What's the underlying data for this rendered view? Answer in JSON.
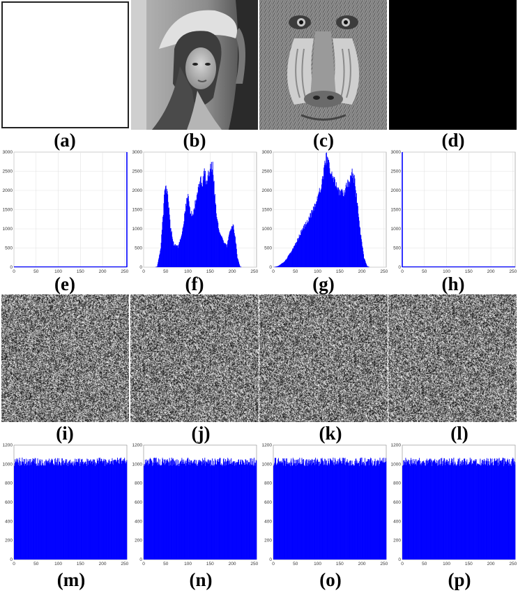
{
  "figure": {
    "labels": [
      "(a)",
      "(b)",
      "(c)",
      "(d)",
      "(e)",
      "(f)",
      "(g)",
      "(h)",
      "(i)",
      "(j)",
      "(k)",
      "(l)",
      "(m)",
      "(n)",
      "(o)",
      "(p)"
    ],
    "images": {
      "a": {
        "content": "white-image"
      },
      "b": {
        "content": "lena-grayscale-photo"
      },
      "c": {
        "content": "baboon-grayscale-photo"
      },
      "d": {
        "content": "black-image"
      },
      "i": {
        "content": "noise-like-encrypted-image"
      },
      "j": {
        "content": "noise-like-encrypted-image"
      },
      "k": {
        "content": "noise-like-encrypted-image"
      },
      "l": {
        "content": "noise-like-encrypted-image"
      }
    }
  },
  "chart_data": [
    {
      "id": "e",
      "type": "bar",
      "series_color": "#0000ff",
      "xlim": [
        0,
        255
      ],
      "ylim": [
        0,
        3000
      ],
      "xticks": [
        "0",
        "50",
        "100",
        "150",
        "200",
        "250"
      ],
      "yticks": [
        "0",
        "500",
        "1000",
        "1500",
        "2000",
        "2500",
        "3000"
      ],
      "grid": true,
      "bars": [
        {
          "x": 255,
          "y": 3000
        }
      ],
      "note_values": "single spike at 255 exceeding axis"
    },
    {
      "id": "f",
      "type": "bar",
      "series_color": "#0000ff",
      "xlim": [
        0,
        255
      ],
      "ylim": [
        0,
        3000
      ],
      "xticks": [
        "0",
        "50",
        "100",
        "150",
        "200",
        "250"
      ],
      "yticks": [
        "0",
        "500",
        "1000",
        "1500",
        "2000",
        "2500",
        "3000"
      ],
      "grid": true,
      "envelope": [
        [
          25,
          0
        ],
        [
          30,
          20
        ],
        [
          38,
          500
        ],
        [
          43,
          1300
        ],
        [
          47,
          2000
        ],
        [
          50,
          2100
        ],
        [
          54,
          1900
        ],
        [
          60,
          1100
        ],
        [
          68,
          600
        ],
        [
          78,
          550
        ],
        [
          88,
          1000
        ],
        [
          97,
          1800
        ],
        [
          101,
          1950
        ],
        [
          106,
          1400
        ],
        [
          112,
          1450
        ],
        [
          120,
          1900
        ],
        [
          128,
          2400
        ],
        [
          132,
          2200
        ],
        [
          137,
          2550
        ],
        [
          141,
          2300
        ],
        [
          147,
          2450
        ],
        [
          152,
          2650
        ],
        [
          156,
          2750
        ],
        [
          160,
          2000
        ],
        [
          166,
          1250
        ],
        [
          172,
          900
        ],
        [
          180,
          700
        ],
        [
          188,
          550
        ],
        [
          196,
          1000
        ],
        [
          202,
          1150
        ],
        [
          207,
          800
        ],
        [
          212,
          250
        ],
        [
          218,
          20
        ],
        [
          222,
          0
        ]
      ]
    },
    {
      "id": "g",
      "type": "bar",
      "series_color": "#0000ff",
      "xlim": [
        0,
        255
      ],
      "ylim": [
        0,
        3000
      ],
      "xticks": [
        "0",
        "50",
        "100",
        "150",
        "200",
        "250"
      ],
      "yticks": [
        "0",
        "500",
        "1000",
        "1500",
        "2000",
        "2500",
        "3000"
      ],
      "grid": true,
      "envelope": [
        [
          0,
          0
        ],
        [
          10,
          30
        ],
        [
          25,
          150
        ],
        [
          45,
          500
        ],
        [
          65,
          1000
        ],
        [
          85,
          1400
        ],
        [
          100,
          1800
        ],
        [
          110,
          2300
        ],
        [
          115,
          2600
        ],
        [
          120,
          2950
        ],
        [
          125,
          2800
        ],
        [
          130,
          2500
        ],
        [
          140,
          2250
        ],
        [
          150,
          1950
        ],
        [
          160,
          2000
        ],
        [
          170,
          2250
        ],
        [
          178,
          2500
        ],
        [
          183,
          2350
        ],
        [
          190,
          1700
        ],
        [
          197,
          900
        ],
        [
          205,
          250
        ],
        [
          212,
          30
        ],
        [
          218,
          0
        ]
      ]
    },
    {
      "id": "h",
      "type": "bar",
      "series_color": "#0000ff",
      "xlim": [
        0,
        255
      ],
      "ylim": [
        0,
        3000
      ],
      "xticks": [
        "0",
        "50",
        "100",
        "150",
        "200",
        "250"
      ],
      "yticks": [
        "0",
        "500",
        "1000",
        "1500",
        "2000",
        "2500",
        "3000"
      ],
      "grid": true,
      "bars": [
        {
          "x": 0,
          "y": 3000
        }
      ],
      "note_values": "single spike at 0 exceeding axis"
    },
    {
      "id": "m",
      "type": "bar",
      "series_color": "#0000ff",
      "xlim": [
        0,
        255
      ],
      "ylim": [
        0,
        1200
      ],
      "xticks": [
        "0",
        "50",
        "100",
        "150",
        "200",
        "250"
      ],
      "yticks": [
        "0",
        "200",
        "400",
        "600",
        "800",
        "1000",
        "1200"
      ],
      "grid": false,
      "uniform_mean": 1024,
      "uniform_spread": 45
    },
    {
      "id": "n",
      "type": "bar",
      "series_color": "#0000ff",
      "xlim": [
        0,
        255
      ],
      "ylim": [
        0,
        1200
      ],
      "xticks": [
        "0",
        "50",
        "100",
        "150",
        "200",
        "250"
      ],
      "yticks": [
        "0",
        "200",
        "400",
        "600",
        "800",
        "1000",
        "1200"
      ],
      "grid": false,
      "uniform_mean": 1024,
      "uniform_spread": 45
    },
    {
      "id": "o",
      "type": "bar",
      "series_color": "#0000ff",
      "xlim": [
        0,
        255
      ],
      "ylim": [
        0,
        1200
      ],
      "xticks": [
        "0",
        "50",
        "100",
        "150",
        "200",
        "250"
      ],
      "yticks": [
        "0",
        "200",
        "400",
        "600",
        "800",
        "1000",
        "1200"
      ],
      "grid": false,
      "uniform_mean": 1024,
      "uniform_spread": 45
    },
    {
      "id": "p",
      "type": "bar",
      "series_color": "#0000ff",
      "xlim": [
        0,
        255
      ],
      "ylim": [
        0,
        1200
      ],
      "xticks": [
        "0",
        "50",
        "100",
        "150",
        "200",
        "250"
      ],
      "yticks": [
        "0",
        "200",
        "400",
        "600",
        "800",
        "1000",
        "1200"
      ],
      "grid": false,
      "uniform_mean": 1024,
      "uniform_spread": 45
    }
  ]
}
